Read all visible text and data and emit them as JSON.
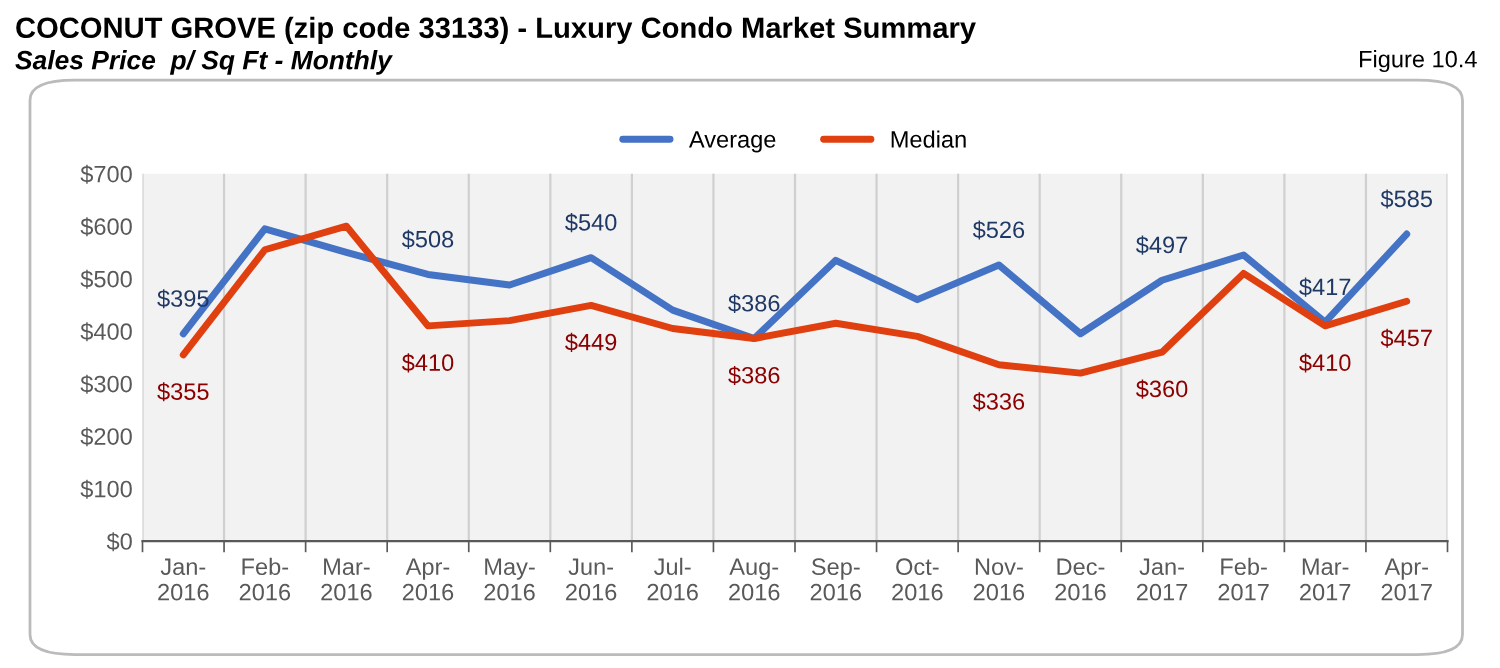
{
  "chart_data": {
    "type": "line",
    "title": "COCONUT GROVE (zip code 33133) - Luxury Condo Market Summary",
    "subtitle": "Sales Price  p/ Sq Ft - Monthly",
    "annotations": [
      "Figure 10.4"
    ],
    "categories": [
      "Jan-\n2016",
      "Feb-\n2016",
      "Mar-\n2016",
      "Apr-\n2016",
      "May-\n2016",
      "Jun-\n2016",
      "Jul-\n2016",
      "Aug-\n2016",
      "Sep-\n2016",
      "Oct-\n2016",
      "Nov-\n2016",
      "Dec-\n2016",
      "Jan-\n2017",
      "Feb-\n2017",
      "Mar-\n2017",
      "Apr-\n2017"
    ],
    "series": [
      {
        "name": "Average",
        "color": "#4472c4",
        "values": [
          395,
          595,
          550,
          508,
          488,
          540,
          440,
          386,
          535,
          460,
          526,
          395,
          497,
          545,
          417,
          585
        ],
        "value_labels": [
          "$395",
          null,
          null,
          "$508",
          null,
          "$540",
          null,
          "$386",
          null,
          null,
          "$526",
          null,
          "$497",
          null,
          "$417",
          "$585"
        ]
      },
      {
        "name": "Median",
        "color": "#e04010",
        "values": [
          355,
          555,
          600,
          410,
          420,
          449,
          405,
          386,
          415,
          390,
          336,
          320,
          360,
          510,
          410,
          457
        ],
        "value_labels": [
          "$355",
          null,
          null,
          "$410",
          null,
          "$449",
          null,
          "$386",
          null,
          null,
          "$336",
          null,
          "$360",
          null,
          "$410",
          "$457"
        ]
      }
    ],
    "ylim": [
      0,
      700
    ],
    "yticks": [
      {
        "value": 0,
        "label": "$0"
      },
      {
        "value": 100,
        "label": "$100"
      },
      {
        "value": 200,
        "label": "$200"
      },
      {
        "value": 300,
        "label": "$300"
      },
      {
        "value": 400,
        "label": "$400"
      },
      {
        "value": 500,
        "label": "$500"
      },
      {
        "value": 600,
        "label": "$600"
      },
      {
        "value": 700,
        "label": "$700"
      }
    ],
    "grid": "x",
    "legend": "top",
    "marker": "none",
    "line_style": "solid"
  }
}
